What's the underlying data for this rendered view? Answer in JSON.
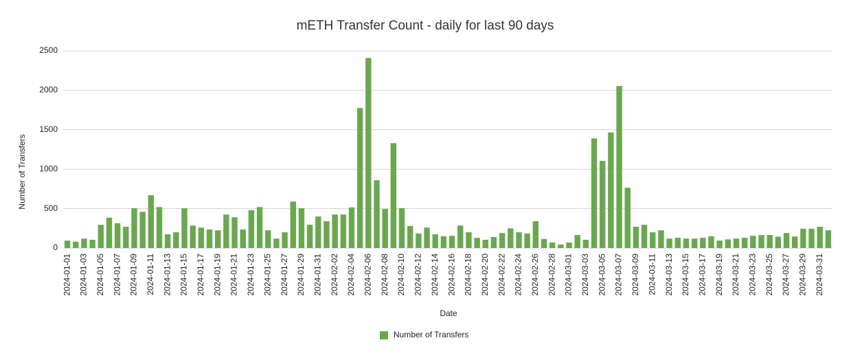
{
  "chart_data": {
    "type": "bar",
    "title": "mETH Transfer Count - daily for last 90 days",
    "x_label": "Date",
    "y_label": "Number of Transfers",
    "categories": [
      "2024-01-01",
      null,
      "2024-01-03",
      null,
      "2024-01-05",
      null,
      "2024-01-07",
      null,
      "2024-01-09",
      null,
      "2024-01-11",
      null,
      "2024-01-13",
      null,
      "2024-01-15",
      null,
      "2024-01-17",
      null,
      "2024-01-19",
      null,
      "2024-01-21",
      null,
      "2024-01-23",
      null,
      "2024-01-25",
      null,
      "2024-01-27",
      null,
      "2024-01-29",
      null,
      "2024-01-31",
      null,
      "2024-02-02",
      null,
      "2024-02-04",
      null,
      "2024-02-06",
      null,
      "2024-02-08",
      null,
      "2024-02-10",
      null,
      "2024-02-12",
      null,
      "2024-02-14",
      null,
      "2024-02-16",
      null,
      "2024-02-18",
      null,
      "2024-02-20",
      null,
      "2024-02-22",
      null,
      "2024-02-24",
      null,
      "2024-02-26",
      null,
      "2024-02-28",
      null,
      "2024-03-01",
      null,
      "2024-03-03",
      null,
      "2024-03-05",
      null,
      "2024-03-07",
      null,
      "2024-03-09",
      null,
      "2024-03-11",
      null,
      "2024-03-13",
      null,
      "2024-03-15",
      null,
      "2024-03-17",
      null,
      "2024-03-19",
      null,
      "2024-03-21",
      null,
      "2024-03-23",
      null,
      "2024-03-25",
      null,
      "2024-03-27",
      null,
      "2024-03-29",
      null,
      "2024-03-31",
      null
    ],
    "series": [
      {
        "name": "Number of Transfers",
        "color": "#6aa84f",
        "values": [
          95,
          80,
          120,
          105,
          295,
          385,
          315,
          270,
          505,
          460,
          670,
          520,
          175,
          200,
          505,
          285,
          260,
          235,
          225,
          425,
          390,
          235,
          480,
          520,
          225,
          120,
          200,
          590,
          505,
          295,
          400,
          340,
          425,
          425,
          515,
          1775,
          2410,
          860,
          495,
          1330,
          505,
          280,
          185,
          260,
          175,
          150,
          155,
          285,
          200,
          130,
          105,
          140,
          190,
          250,
          200,
          185,
          340,
          115,
          70,
          45,
          70,
          165,
          105,
          1390,
          1105,
          1465,
          2055,
          765,
          270,
          295,
          200,
          225,
          120,
          130,
          120,
          120,
          130,
          150,
          95,
          110,
          120,
          130,
          155,
          165,
          165,
          145,
          190,
          145,
          245,
          245,
          270,
          225
        ]
      }
    ],
    "ylim": [
      0,
      2500
    ],
    "yticks": [
      0,
      500,
      1000,
      1500,
      2000,
      2500
    ],
    "grid": true,
    "legend": "bottom"
  }
}
